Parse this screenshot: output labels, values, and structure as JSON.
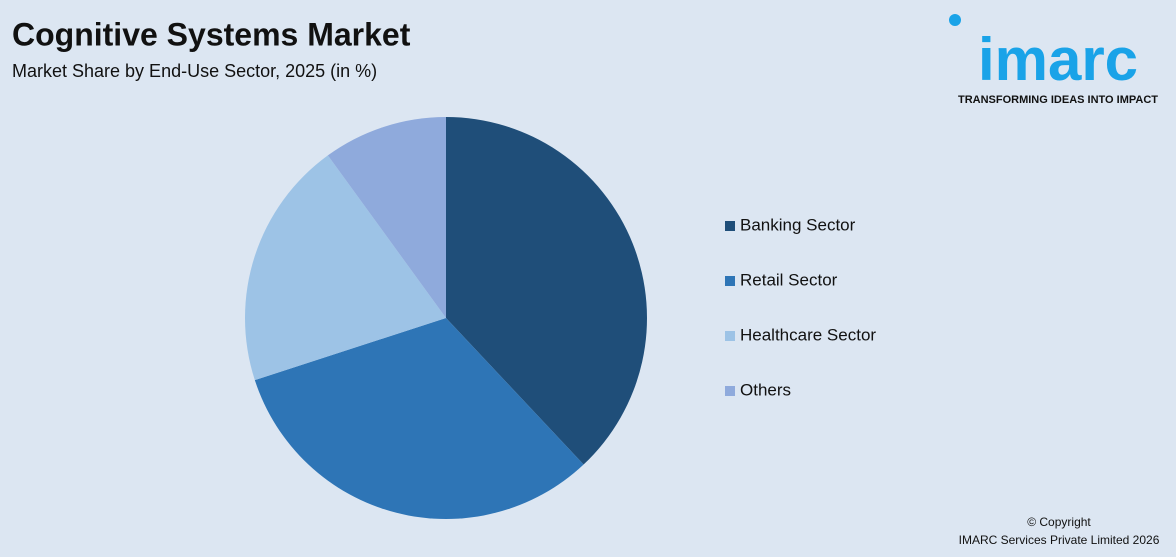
{
  "chart_data": {
    "type": "pie",
    "title": "Cognitive Systems Market",
    "subtitle": "Market Share by End-Use Sector, 2025 (in %)",
    "categories": [
      "Banking Sector",
      "Retail Sector",
      "Healthcare Sector",
      "Others"
    ],
    "values": [
      38,
      32,
      20,
      10
    ],
    "colors": [
      "#1f4e79",
      "#2e75b6",
      "#9dc3e6",
      "#8faadc"
    ],
    "legend": "right"
  },
  "logo": {
    "text": "imarc",
    "tagline": "TRANSFORMING IDEAS INTO IMPACT"
  },
  "copyright": [
    "© Copyright",
    "IMARC Services Private Limited 2026"
  ]
}
